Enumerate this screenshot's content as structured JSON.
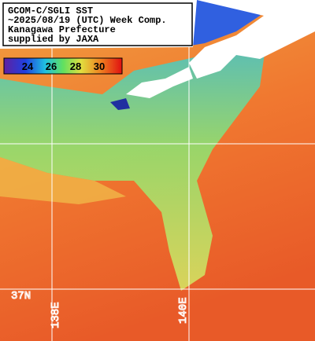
{
  "header": {
    "lines": [
      "GCOM-C/SGLI SST",
      "~2025/08/19 (UTC) Week Comp.",
      "Kanagawa Prefecture",
      "supplied by JAXA"
    ]
  },
  "colorbar": {
    "ticks": [
      24,
      26,
      28,
      30
    ]
  },
  "grid_labels": {
    "latitude": [
      "37N"
    ],
    "longitude": [
      "138E",
      "140E"
    ]
  }
}
